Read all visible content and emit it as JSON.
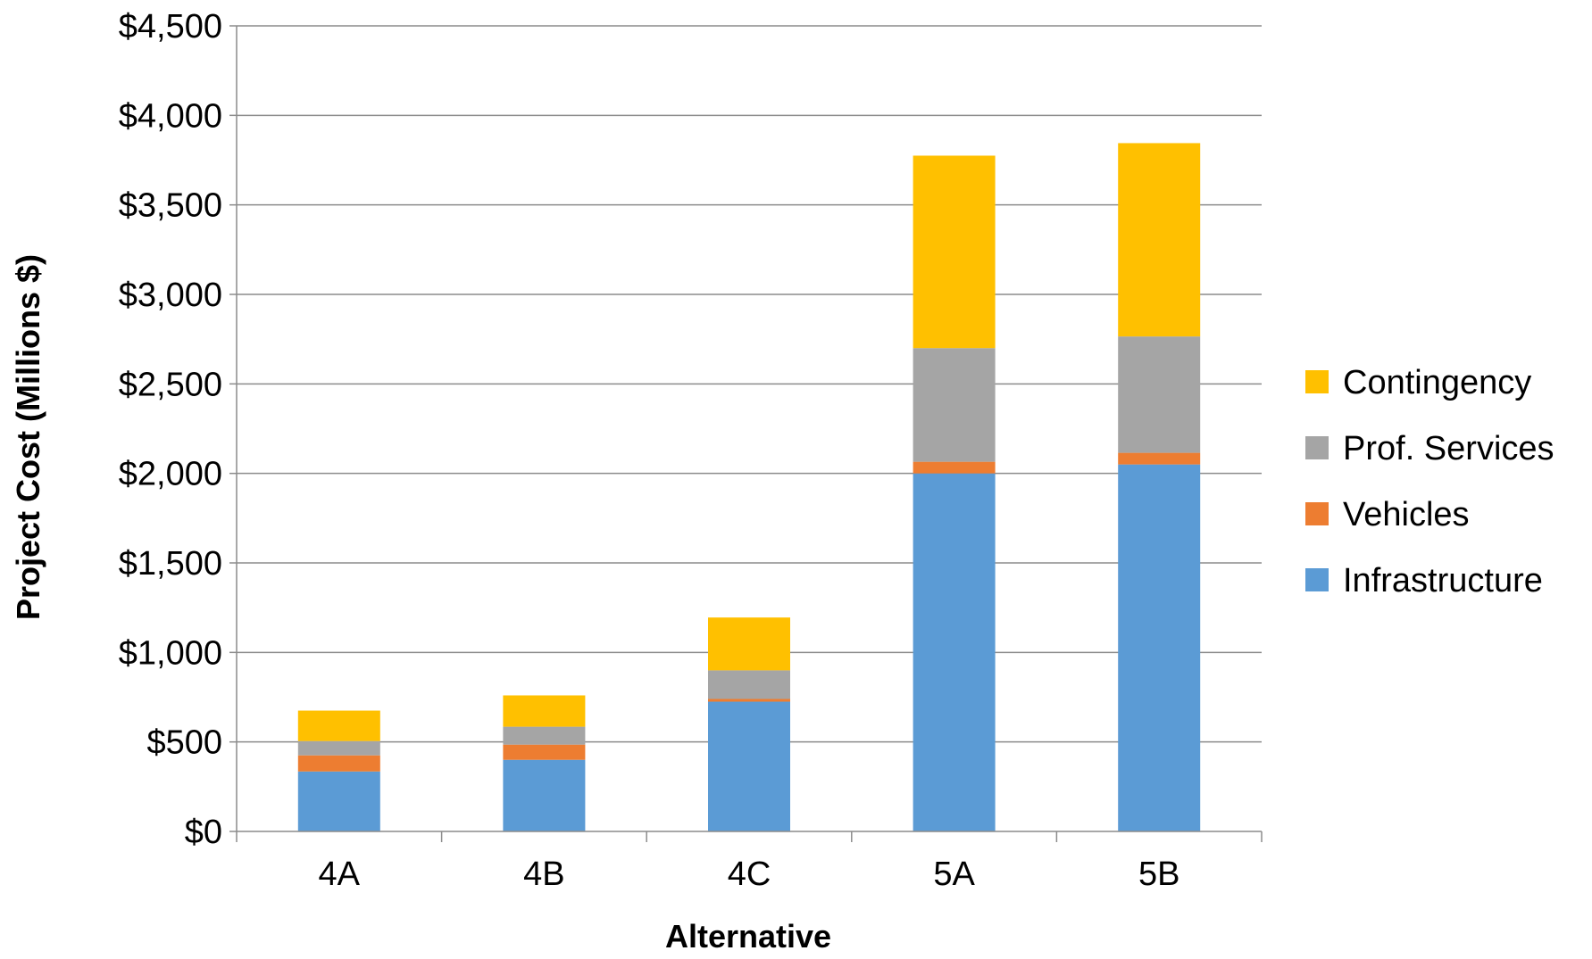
{
  "chart_data": {
    "type": "bar",
    "stacked": true,
    "categories": [
      "4A",
      "4B",
      "4C",
      "5A",
      "5B"
    ],
    "series": [
      {
        "name": "Infrastructure",
        "values": [
          335,
          400,
          725,
          2000,
          2050
        ],
        "color": "#5b9bd5"
      },
      {
        "name": "Vehicles",
        "values": [
          90,
          85,
          15,
          65,
          65
        ],
        "color": "#ed7d31"
      },
      {
        "name": "Prof. Services",
        "values": [
          80,
          100,
          160,
          635,
          650
        ],
        "color": "#a5a5a5"
      },
      {
        "name": "Contingency",
        "values": [
          170,
          175,
          295,
          1075,
          1080
        ],
        "color": "#ffc000"
      }
    ],
    "title": "",
    "xlabel": "Alternative",
    "ylabel": "Project Cost (Millions $)",
    "ylim": [
      0,
      4500
    ],
    "y_ticks": [
      0,
      500,
      1000,
      1500,
      2000,
      2500,
      3000,
      3500,
      4000,
      4500
    ],
    "y_tick_labels": [
      "$0",
      "$500",
      "$1,000",
      "$1,500",
      "$2,000",
      "$2,500",
      "$3,000",
      "$3,500",
      "$4,000",
      "$4,500"
    ],
    "grid": true,
    "legend_position": "right",
    "legend_order": [
      "Contingency",
      "Prof. Services",
      "Vehicles",
      "Infrastructure"
    ]
  }
}
